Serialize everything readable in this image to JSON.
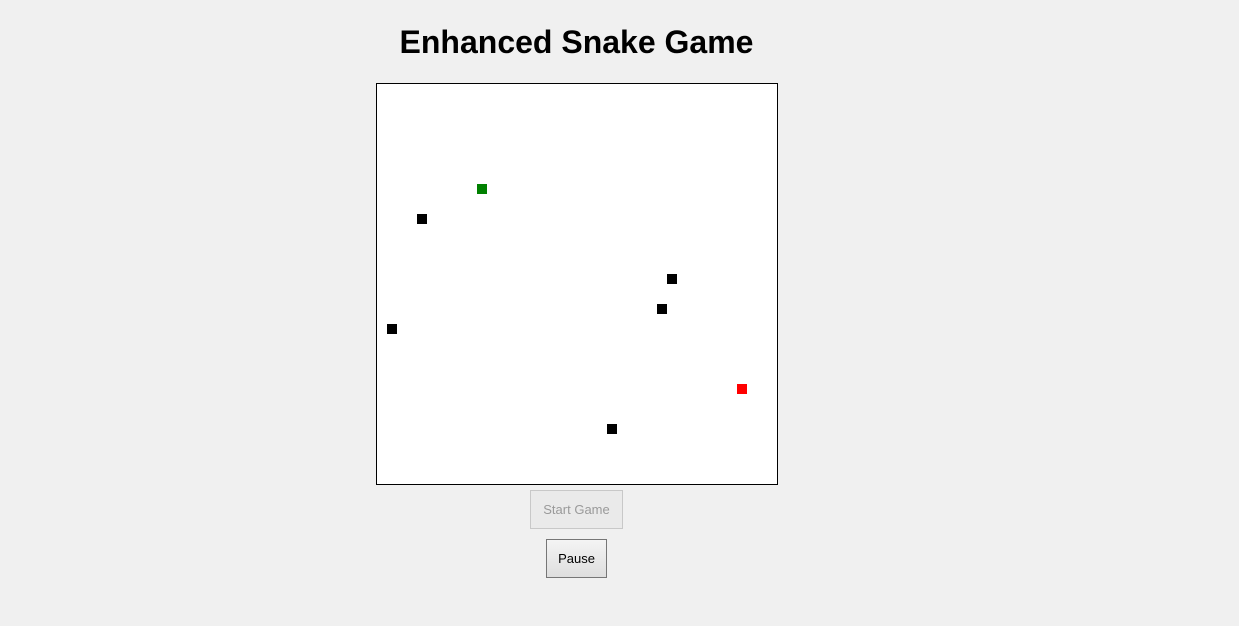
{
  "header": {
    "title": "Enhanced Snake Game"
  },
  "board": {
    "grid_columns": 40,
    "grid_rows": 40,
    "colors": {
      "background": "#ffffff",
      "snake": "#008000",
      "food": "#ff0000",
      "obstacle": "#000000"
    },
    "snake": [
      {
        "col": 10,
        "row": 10
      }
    ],
    "food": {
      "col": 36,
      "row": 30
    },
    "obstacles": [
      {
        "col": 4,
        "row": 13
      },
      {
        "col": 29,
        "row": 19
      },
      {
        "col": 28,
        "row": 22
      },
      {
        "col": 1,
        "row": 24
      },
      {
        "col": 23,
        "row": 34
      }
    ]
  },
  "controls": {
    "start_label": "Start Game",
    "start_enabled": false,
    "pause_label": "Pause"
  }
}
